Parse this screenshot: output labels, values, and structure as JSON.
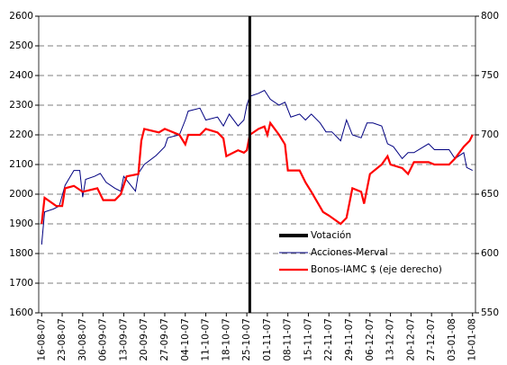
{
  "chart_data": {
    "type": "line",
    "xlim": [
      "15-08-07",
      "11-01-08"
    ],
    "xticks": [
      "16-08-07",
      "23-08-07",
      "30-08-07",
      "06-09-07",
      "13-09-07",
      "20-09-07",
      "27-09-07",
      "04-10-07",
      "11-10-07",
      "18-10-07",
      "25-10-07",
      "01-11-07",
      "08-11-07",
      "15-11-07",
      "22-11-07",
      "29-11-07",
      "06-12-07",
      "13-12-07",
      "20-12-07",
      "27-12-07",
      "03-01-08",
      "10-01-08"
    ],
    "ylim": [
      1600,
      2600
    ],
    "yticks": [
      1600,
      1700,
      1800,
      1900,
      2000,
      2100,
      2200,
      2300,
      2400,
      2500,
      2600
    ],
    "y2lim": [
      550,
      800
    ],
    "y2ticks": [
      550,
      600,
      650,
      700,
      750,
      800
    ],
    "grid": true,
    "marker": {
      "name": "Votación",
      "x": "26-10-07",
      "color": "#000000"
    },
    "series": [
      {
        "name": "Acciones-Merval",
        "color": "#000080",
        "x": [
          "16-08-07",
          "17-08-07",
          "20-08-07",
          "22-08-07",
          "24-08-07",
          "27-08-07",
          "29-08-07",
          "30-08-07",
          "31-08-07",
          "03-09-07",
          "05-09-07",
          "07-09-07",
          "10-09-07",
          "12-09-07",
          "13-09-07",
          "17-09-07",
          "18-09-07",
          "20-09-07",
          "24-09-07",
          "27-09-07",
          "28-09-07",
          "02-10-07",
          "04-10-07",
          "05-10-07",
          "09-10-07",
          "11-10-07",
          "15-10-07",
          "17-10-07",
          "19-10-07",
          "22-10-07",
          "24-10-07",
          "25-10-07",
          "26-10-07",
          "29-10-07",
          "31-10-07",
          "02-11-07",
          "05-11-07",
          "07-11-07",
          "09-11-07",
          "12-11-07",
          "14-11-07",
          "16-11-07",
          "19-11-07",
          "21-11-07",
          "23-11-07",
          "26-11-07",
          "28-11-07",
          "30-11-07",
          "03-12-07",
          "05-12-07",
          "07-12-07",
          "10-12-07",
          "12-12-07",
          "14-12-07",
          "17-12-07",
          "19-12-07",
          "21-12-07",
          "26-12-07",
          "28-12-07",
          "02-01-08",
          "04-01-08",
          "07-01-08",
          "08-01-08",
          "10-01-08"
        ],
        "values": [
          1830,
          1940,
          1950,
          1960,
          2030,
          2080,
          2080,
          1990,
          2050,
          2060,
          2070,
          2040,
          2020,
          2010,
          2060,
          2010,
          2070,
          2100,
          2130,
          2160,
          2190,
          2200,
          2250,
          2280,
          2290,
          2250,
          2260,
          2230,
          2270,
          2230,
          2250,
          2300,
          2330,
          2340,
          2350,
          2320,
          2300,
          2310,
          2260,
          2270,
          2250,
          2270,
          2240,
          2210,
          2210,
          2180,
          2250,
          2200,
          2190,
          2240,
          2240,
          2230,
          2170,
          2160,
          2120,
          2140,
          2140,
          2170,
          2150,
          2150,
          2120,
          2140,
          2090,
          2080
        ]
      },
      {
        "name": "Bonos-IAMC $ (eje derecho)",
        "color": "#ff0000",
        "axis": "y2",
        "x": [
          "16-08-07",
          "17-08-07",
          "21-08-07",
          "23-08-07",
          "24-08-07",
          "27-08-07",
          "30-08-07",
          "04-09-07",
          "06-09-07",
          "10-09-07",
          "12-09-07",
          "14-09-07",
          "18-09-07",
          "19-09-07",
          "20-09-07",
          "25-09-07",
          "27-09-07",
          "02-10-07",
          "04-10-07",
          "05-10-07",
          "09-10-07",
          "11-10-07",
          "15-10-07",
          "17-10-07",
          "18-10-07",
          "22-10-07",
          "24-10-07",
          "25-10-07",
          "26-10-07",
          "29-10-07",
          "31-10-07",
          "01-11-07",
          "02-11-07",
          "05-11-07",
          "07-11-07",
          "08-11-07",
          "12-11-07",
          "14-11-07",
          "16-11-07",
          "20-11-07",
          "22-11-07",
          "26-11-07",
          "28-11-07",
          "30-11-07",
          "03-12-07",
          "04-12-07",
          "06-12-07",
          "10-12-07",
          "12-12-07",
          "13-12-07",
          "17-12-07",
          "19-12-07",
          "21-12-07",
          "26-12-07",
          "28-12-07",
          "02-01-08",
          "04-01-08",
          "07-01-08",
          "09-01-08",
          "10-01-08"
        ],
        "values": [
          625,
          647,
          640,
          640,
          655,
          657,
          652,
          655,
          645,
          645,
          650,
          665,
          667,
          695,
          705,
          702,
          705,
          700,
          692,
          700,
          700,
          705,
          702,
          697,
          682,
          687,
          685,
          687,
          700,
          705,
          707,
          700,
          710,
          700,
          692,
          670,
          670,
          660,
          652,
          635,
          632,
          625,
          630,
          655,
          652,
          642,
          667,
          675,
          682,
          675,
          672,
          667,
          677,
          677,
          675,
          675,
          680,
          690,
          695,
          700
        ]
      }
    ]
  }
}
